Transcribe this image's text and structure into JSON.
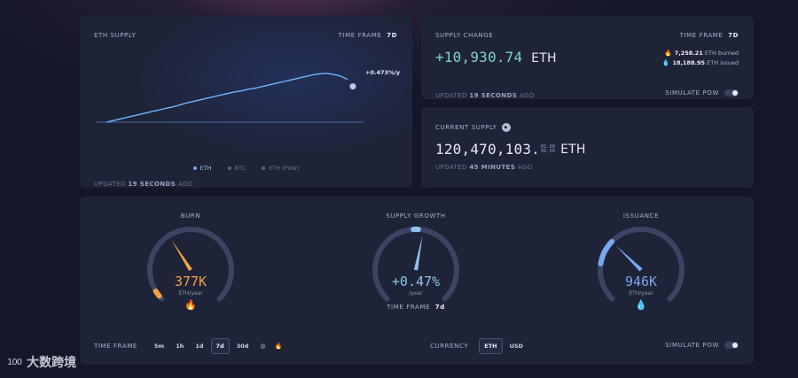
{
  "eth_supply": {
    "title": "ETH SUPPLY",
    "timeframe_label": "TIME FRAME",
    "timeframe_value": "7d",
    "end_label": "+0.473%/y",
    "legend": [
      {
        "label": "ETH",
        "color": "#6fa8ff",
        "active": true
      },
      {
        "label": "BTC",
        "color": "#5b6380",
        "active": false
      },
      {
        "label": "ETH (PoW)",
        "color": "#5b6380",
        "active": false
      }
    ],
    "updated_prefix": "UPDATED",
    "updated_value": "19 SECONDS",
    "updated_suffix": "AGO"
  },
  "chart_data": {
    "type": "line",
    "title": "ETH SUPPLY",
    "series": [
      {
        "name": "ETH",
        "values": [
          0.0,
          0.03,
          0.06,
          0.09,
          0.12,
          0.15,
          0.18,
          0.21,
          0.24,
          0.27,
          0.3,
          0.34,
          0.37,
          0.4,
          0.43,
          0.46,
          0.49,
          0.52,
          0.55,
          0.57,
          0.6,
          0.62,
          0.65,
          0.68,
          0.71,
          0.74,
          0.77,
          0.8,
          0.83,
          0.86,
          0.88,
          0.89,
          0.87,
          0.84,
          0.78
        ]
      }
    ],
    "ylim": [
      0,
      1
    ],
    "grid": false
  },
  "supply_change": {
    "title": "SUPPLY CHANGE",
    "timeframe_label": "TIME FRAME",
    "timeframe_value": "7d",
    "value": "+10,930.74",
    "unit": "ETH",
    "burned_value": "7,258.21",
    "burned_label": "ETH burned",
    "issued_value": "18,188.95",
    "issued_label": "ETH issued",
    "updated_prefix": "UPDATED",
    "updated_value": "19 SECONDS",
    "updated_suffix": "AGO",
    "simulate_label": "SIMULATE PoW"
  },
  "current_supply": {
    "title": "CURRENT SUPPLY",
    "value": "120,470,103.",
    "frac_top": "81.60",
    "frac_bottom": "96.58",
    "unit": "ETH",
    "updated_prefix": "UPDATED",
    "updated_value": "45 MINUTES",
    "updated_suffix": "AGO"
  },
  "gauges": {
    "burn": {
      "title": "BURN",
      "value": "377K",
      "unit": "ETH/year",
      "icon": "fire-icon",
      "level": 0.38,
      "color": "#f0a244"
    },
    "growth": {
      "title": "SUPPLY GROWTH",
      "value": "+0.47%",
      "unit": "/year",
      "level": 0.54,
      "color": "#8fc3ef",
      "timeframe_label": "TIME FRAME",
      "timeframe_value": "7d"
    },
    "issuance": {
      "title": "ISSUANCE",
      "value": "946K",
      "unit": "ETH/year",
      "icon": "droplet-icon",
      "level": 0.33,
      "color": "#7aa6f0"
    }
  },
  "bottom": {
    "timeframe_label": "TIME FRAME",
    "timeframes": [
      "5m",
      "1h",
      "1d",
      "7d",
      "30d"
    ],
    "selected_timeframe": "7d",
    "currency_label": "CURRENCY",
    "currencies": [
      "ETH",
      "USD"
    ],
    "selected_currency": "ETH",
    "simulate_label": "SIMULATE PoW"
  },
  "watermark": {
    "logo": "100",
    "text": "大数跨境"
  }
}
